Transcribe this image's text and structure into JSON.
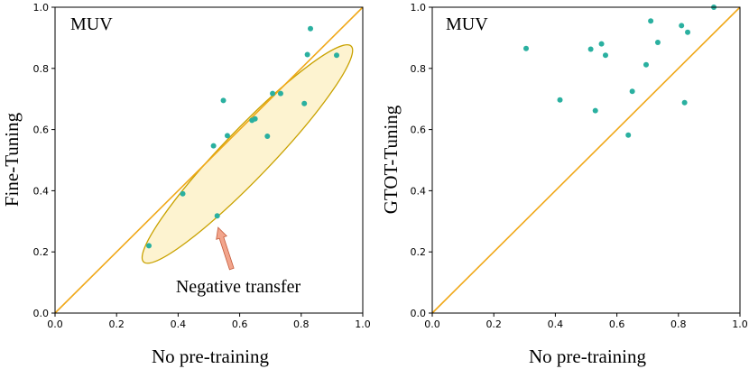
{
  "colors": {
    "points": "#2ab0a0",
    "diagonal": "#f0a818",
    "ellipse_fill": "#fdf3d0",
    "ellipse_stroke": "#c9a200",
    "arrow_fill": "#f2a58c",
    "arrow_stroke": "#c45a3a",
    "axis": "#000000"
  },
  "chart_data": [
    {
      "type": "scatter",
      "inset_label": "MUV",
      "xlabel": "No pre-training",
      "ylabel": "Fine-Tuning",
      "xlim": [
        0,
        1
      ],
      "ylim": [
        0,
        1
      ],
      "xticks": [
        "0.0",
        "0.2",
        "0.4",
        "0.6",
        "0.8",
        "1.0"
      ],
      "yticks": [
        "0.0",
        "0.2",
        "0.4",
        "0.6",
        "0.8",
        "1.0"
      ],
      "diagonal": "y = x",
      "points": [
        {
          "x": 0.305,
          "y": 0.22
        },
        {
          "x": 0.415,
          "y": 0.39
        },
        {
          "x": 0.527,
          "y": 0.318
        },
        {
          "x": 0.515,
          "y": 0.547
        },
        {
          "x": 0.547,
          "y": 0.695
        },
        {
          "x": 0.56,
          "y": 0.58
        },
        {
          "x": 0.64,
          "y": 0.63
        },
        {
          "x": 0.65,
          "y": 0.635
        },
        {
          "x": 0.69,
          "y": 0.578
        },
        {
          "x": 0.707,
          "y": 0.718
        },
        {
          "x": 0.733,
          "y": 0.718
        },
        {
          "x": 0.81,
          "y": 0.685
        },
        {
          "x": 0.82,
          "y": 0.845
        },
        {
          "x": 0.83,
          "y": 0.93
        },
        {
          "x": 0.915,
          "y": 0.843
        }
      ],
      "annotation": {
        "text": "Negative transfer",
        "region": "ellipse along diagonal from (0.30, 0.18) to (0.95, 0.86)",
        "arrow_target": {
          "x": 0.53,
          "y": 0.28
        }
      }
    },
    {
      "type": "scatter",
      "inset_label": "MUV",
      "xlabel": "No pre-training",
      "ylabel": "GTOT-Tuning",
      "xlim": [
        0,
        1
      ],
      "ylim": [
        0,
        1
      ],
      "xticks": [
        "0.0",
        "0.2",
        "0.4",
        "0.6",
        "0.8",
        "1.0"
      ],
      "yticks": [
        "0.0",
        "0.2",
        "0.4",
        "0.6",
        "0.8",
        "1.0"
      ],
      "diagonal": "y = x",
      "points": [
        {
          "x": 0.305,
          "y": 0.865
        },
        {
          "x": 0.415,
          "y": 0.697
        },
        {
          "x": 0.515,
          "y": 0.863
        },
        {
          "x": 0.53,
          "y": 0.662
        },
        {
          "x": 0.55,
          "y": 0.88
        },
        {
          "x": 0.563,
          "y": 0.843
        },
        {
          "x": 0.637,
          "y": 0.582
        },
        {
          "x": 0.65,
          "y": 0.725
        },
        {
          "x": 0.695,
          "y": 0.812
        },
        {
          "x": 0.71,
          "y": 0.955
        },
        {
          "x": 0.733,
          "y": 0.885
        },
        {
          "x": 0.81,
          "y": 0.94
        },
        {
          "x": 0.82,
          "y": 0.688
        },
        {
          "x": 0.83,
          "y": 0.918
        },
        {
          "x": 0.915,
          "y": 1.0
        }
      ]
    }
  ]
}
